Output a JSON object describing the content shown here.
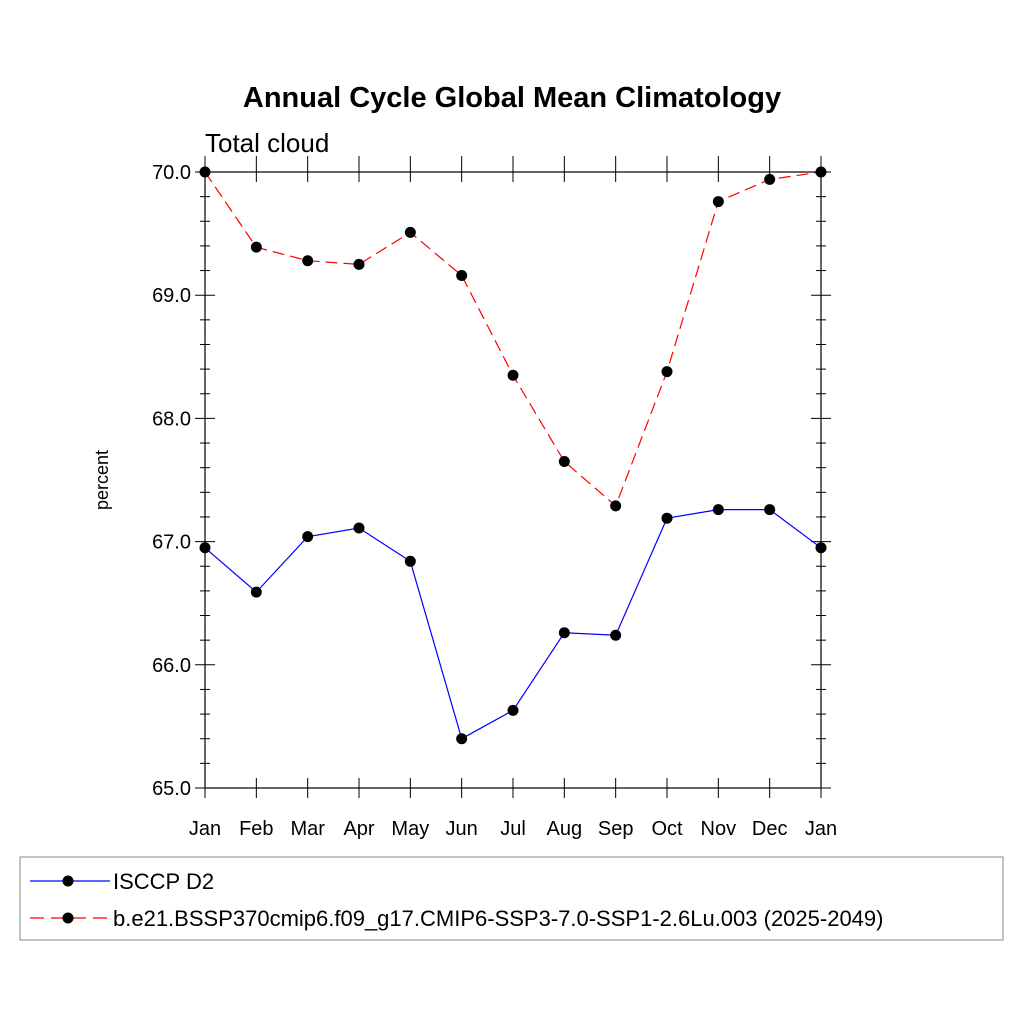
{
  "chart_data": {
    "type": "line",
    "title": "Annual Cycle Global Mean Climatology",
    "subtitle": "Total cloud",
    "ylabel": "percent",
    "xlabel": "",
    "categories": [
      "Jan",
      "Feb",
      "Mar",
      "Apr",
      "May",
      "Jun",
      "Jul",
      "Aug",
      "Sep",
      "Oct",
      "Nov",
      "Dec",
      "Jan"
    ],
    "ylim": [
      65.0,
      70.0
    ],
    "yticks": [
      "65.0",
      "66.0",
      "67.0",
      "68.0",
      "69.0",
      "70.0"
    ],
    "ytick_values": [
      65,
      66,
      67,
      68,
      69,
      70
    ],
    "series": [
      {
        "name": "ISCCP D2",
        "color": "#0000ff",
        "dashed": false,
        "values": [
          66.95,
          66.59,
          67.04,
          67.11,
          66.84,
          65.4,
          65.63,
          66.26,
          66.24,
          67.19,
          67.26,
          67.26,
          66.95
        ]
      },
      {
        "name": "b.e21.BSSP370cmip6.f09_g17.CMIP6-SSP3-7.0-SSP1-2.6Lu.003 (2025-2049)",
        "color": "#ff0000",
        "dashed": true,
        "values": [
          70.0,
          69.39,
          69.28,
          69.25,
          69.51,
          69.16,
          68.35,
          67.65,
          67.29,
          68.38,
          69.76,
          69.94,
          70.0
        ]
      }
    ],
    "legend_position": "bottom"
  }
}
